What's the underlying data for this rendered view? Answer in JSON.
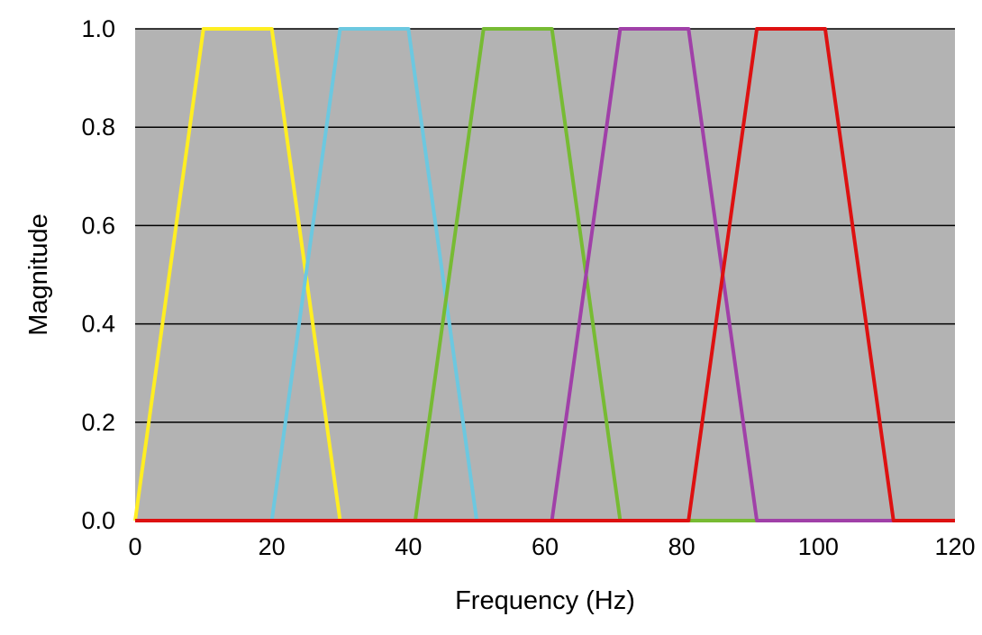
{
  "chart_data": {
    "type": "line",
    "title": "",
    "xlabel": "Frequency (Hz)",
    "ylabel": "Magnitude",
    "xlim": [
      0,
      120
    ],
    "ylim": [
      0,
      1.0
    ],
    "x_ticks": [
      "0",
      "20",
      "40",
      "60",
      "80",
      "100",
      "120"
    ],
    "y_ticks": [
      "0.0",
      "0.2",
      "0.4",
      "0.6",
      "0.8",
      "1.0"
    ],
    "grid": "horizontal",
    "legend": "none",
    "plot_background": "#b3b3b3",
    "series": [
      {
        "color": "#ffee22",
        "x": [
          0,
          10,
          20,
          30
        ],
        "y": [
          0,
          1,
          1,
          0
        ]
      },
      {
        "color": "#6cc8e0",
        "x": [
          20,
          30,
          40,
          50
        ],
        "y": [
          0,
          1,
          1,
          0
        ]
      },
      {
        "color": "#77bb33",
        "x": [
          41,
          51,
          61,
          71
        ],
        "y": [
          0,
          1,
          1,
          0
        ]
      },
      {
        "color": "#a040a8",
        "x": [
          61,
          71,
          81,
          91
        ],
        "y": [
          0,
          1,
          1,
          0
        ]
      },
      {
        "color": "#dd1111",
        "x": [
          81,
          91,
          101,
          111
        ],
        "y": [
          0,
          1,
          1,
          0
        ]
      }
    ]
  }
}
